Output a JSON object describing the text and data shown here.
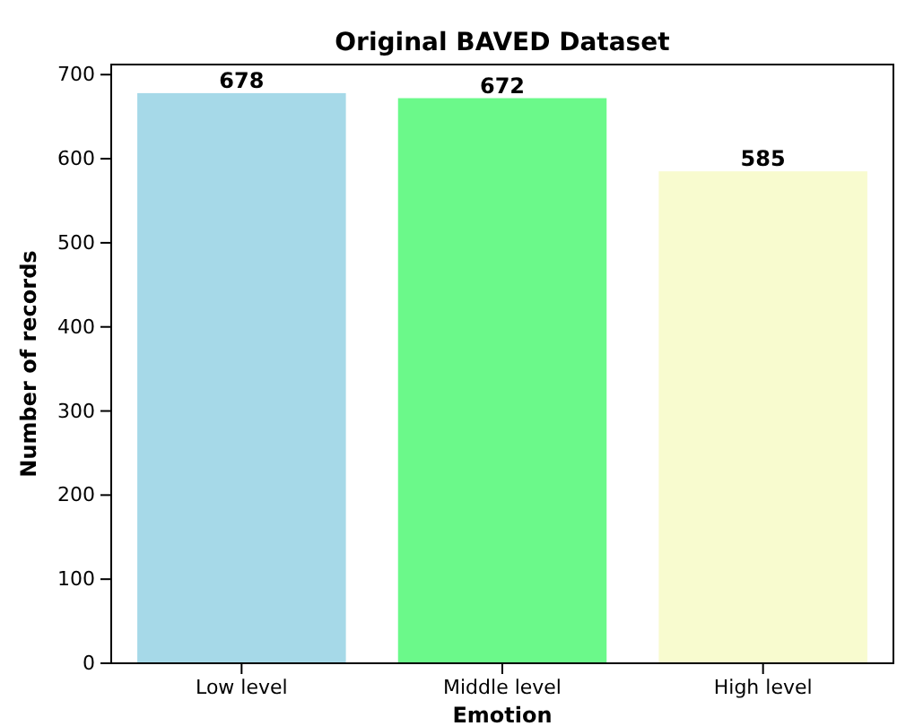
{
  "chart_data": {
    "type": "bar",
    "title": "Original BAVED Dataset",
    "xlabel": "Emotion",
    "ylabel": "Number of records",
    "categories": [
      "Low level",
      "Middle level",
      "High level"
    ],
    "values": [
      678,
      672,
      585
    ],
    "colors": [
      "#a6d9e8",
      "#6bf98a",
      "#f8fbcf"
    ],
    "ylim": [
      0,
      712
    ],
    "yticks": [
      0,
      100,
      200,
      300,
      400,
      500,
      600,
      700
    ],
    "data_labels": true
  }
}
